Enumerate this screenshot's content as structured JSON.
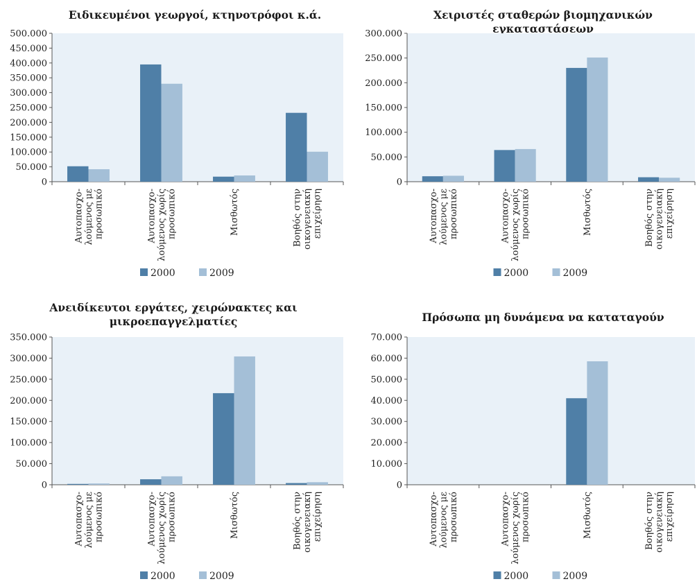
{
  "colors": {
    "plot_bg": "#e9f1f8",
    "series_2000": "#4f7fa7",
    "series_2009": "#a4bfd7"
  },
  "chart_data": [
    {
      "type": "bar",
      "title": "Ειδικευμένοι γεωργοί, κτηνοτρόφοι κ.ά.",
      "categories": [
        [
          "Αυτοπασχο-",
          "λούμενος με",
          "προσωπικό"
        ],
        [
          "Αυτοπασχο-",
          "λούμενος χωρίς",
          "προσωπικό"
        ],
        [
          "Μισθωτός"
        ],
        [
          "Βοηθός στην",
          "οικογενειακή",
          "επιχείρηση"
        ]
      ],
      "series": [
        {
          "name": "2000",
          "values": [
            52000,
            395000,
            17000,
            232000
          ]
        },
        {
          "name": "2009",
          "values": [
            42000,
            330000,
            21000,
            101000
          ]
        }
      ],
      "ylim": [
        0,
        500000
      ],
      "yticks": [
        "0",
        "50.000",
        "100.000",
        "150.000",
        "200.000",
        "250.000",
        "300.000",
        "350.000",
        "400.000",
        "450.000",
        "500.000"
      ],
      "legend_position": "bottom"
    },
    {
      "type": "bar",
      "title": "Χειριστές σταθερών βιομηχανικών εγκαταστάσεων",
      "categories": [
        [
          "Αυτοπασχο-",
          "λούμενος με",
          "προσωπικό"
        ],
        [
          "Αυτοπασχο-",
          "λούμενος χωρίς",
          "προσωπικό"
        ],
        [
          "Μισθωτός"
        ],
        [
          "Βοηθός στην",
          "οικογενειακή",
          "επιχείρηση"
        ]
      ],
      "series": [
        {
          "name": "2000",
          "values": [
            11000,
            64000,
            230000,
            9000
          ]
        },
        {
          "name": "2009",
          "values": [
            12000,
            66000,
            251000,
            8000
          ]
        }
      ],
      "ylim": [
        0,
        300000
      ],
      "yticks": [
        "0",
        "50.000",
        "100.000",
        "150.000",
        "200.000",
        "250.000",
        "300.000"
      ],
      "legend_position": "bottom"
    },
    {
      "type": "bar",
      "title": "Ανειδίκευτοι εργάτες, χειρώνακτες και μικροεπαγγελματίες",
      "categories": [
        [
          "Αυτοπασχο-",
          "λούμενος με",
          "προσωπικό"
        ],
        [
          "Αυτοπασχο-",
          "λούμενος χωρίς",
          "προσωπικό"
        ],
        [
          "Μισθωτός"
        ],
        [
          "Βοηθός στην",
          "οικογενειακή",
          "επιχείρηση"
        ]
      ],
      "series": [
        {
          "name": "2000",
          "values": [
            2000,
            13000,
            217000,
            4000
          ]
        },
        {
          "name": "2009",
          "values": [
            3000,
            20000,
            304000,
            6000
          ]
        }
      ],
      "ylim": [
        0,
        350000
      ],
      "yticks": [
        "0",
        "50.000",
        "100.000",
        "150.000",
        "200.000",
        "250.000",
        "300.000",
        "350.000"
      ],
      "legend_position": "bottom"
    },
    {
      "type": "bar",
      "title": "Πρόσωπα μη δυνάμενα να καταταγούν",
      "categories": [
        [
          "Αυτοπασχο-",
          "λούμενος με",
          "προσωπικό"
        ],
        [
          "Αυτοπασχο-",
          "λούμενος χωρίς",
          "προσωπικό"
        ],
        [
          "Μισθωτός"
        ],
        [
          "Βοηθός στην",
          "οικογενειακή",
          "επιχείρηση"
        ]
      ],
      "series": [
        {
          "name": "2000",
          "values": [
            0,
            0,
            41000,
            0
          ]
        },
        {
          "name": "2009",
          "values": [
            0,
            0,
            58500,
            0
          ]
        }
      ],
      "ylim": [
        0,
        70000
      ],
      "yticks": [
        "0",
        "10.000",
        "20.000",
        "30.000",
        "40.000",
        "50.000",
        "60.000",
        "70.000"
      ],
      "legend_position": "bottom"
    }
  ]
}
